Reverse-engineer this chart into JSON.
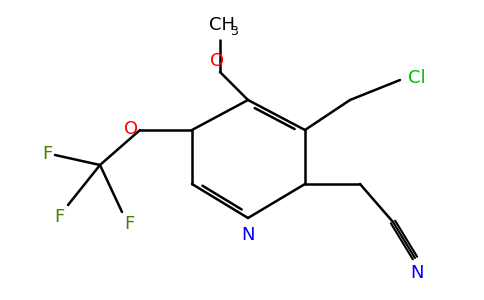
{
  "bg_color": "#ffffff",
  "ring_color": "#000000",
  "atom_colors": {
    "N": "#0000ff",
    "O": "#ff0000",
    "Cl": "#00bb00",
    "F": "#4a7c00"
  },
  "lw": 1.8
}
